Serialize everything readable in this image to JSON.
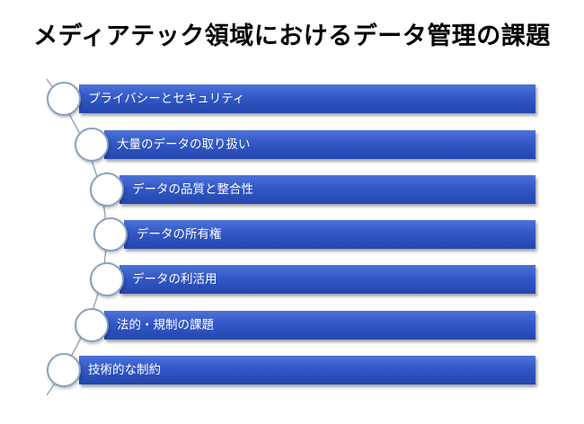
{
  "title": "メディアテック領域におけるデータ管理の課題",
  "items": [
    {
      "label": "プライバシーとセキュリティ"
    },
    {
      "label": "大量のデータの取り扱い"
    },
    {
      "label": "データの品質と整合性"
    },
    {
      "label": "データの所有権"
    },
    {
      "label": "データの利活用"
    },
    {
      "label": "法的・規制の課題"
    },
    {
      "label": "技術的な制約"
    }
  ],
  "colors": {
    "bar": "#3258c7",
    "circle_border": "#8aa0bf",
    "curve": "#9aa6b8"
  }
}
